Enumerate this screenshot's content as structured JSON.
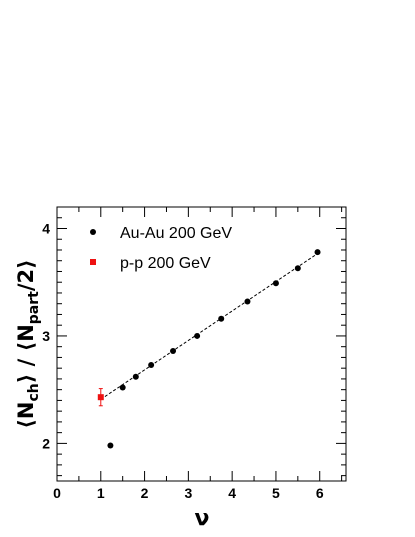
{
  "chart_data": {
    "type": "scatter",
    "xlabel": "ν",
    "ylabel": {
      "prefix": "⟨N",
      "sub1": "ch",
      "middle": "⟩ / ⟨N",
      "sub2": "part",
      "suffix": "/2⟩"
    },
    "xlim": [
      0,
      6.6
    ],
    "ylim": [
      1.65,
      4.2
    ],
    "x_ticks": [
      "0",
      "1",
      "2",
      "3",
      "4",
      "5",
      "6"
    ],
    "y_ticks": [
      "2",
      "3",
      "4"
    ],
    "legend_placement": "top-left",
    "series": [
      {
        "name": "Au-Au 200 GeV",
        "color": "#000000",
        "marker": "circle",
        "points": [
          [
            1.22,
            1.98
          ],
          [
            1.5,
            2.52
          ],
          [
            1.8,
            2.62
          ],
          [
            2.15,
            2.73
          ],
          [
            2.65,
            2.86
          ],
          [
            3.2,
            3.0
          ],
          [
            3.75,
            3.16
          ],
          [
            4.35,
            3.32
          ],
          [
            5.0,
            3.49
          ],
          [
            5.5,
            3.63
          ],
          [
            5.95,
            3.78
          ]
        ]
      },
      {
        "name": "p-p 200 GeV",
        "color": "#ee1111",
        "marker": "square",
        "points": [
          [
            1.0,
            2.43
          ]
        ],
        "error": [
          0.08
        ]
      }
    ],
    "fit_line": {
      "style": "dashed",
      "from": [
        1.0,
        2.41
      ],
      "to": [
        6.0,
        3.78
      ]
    }
  }
}
